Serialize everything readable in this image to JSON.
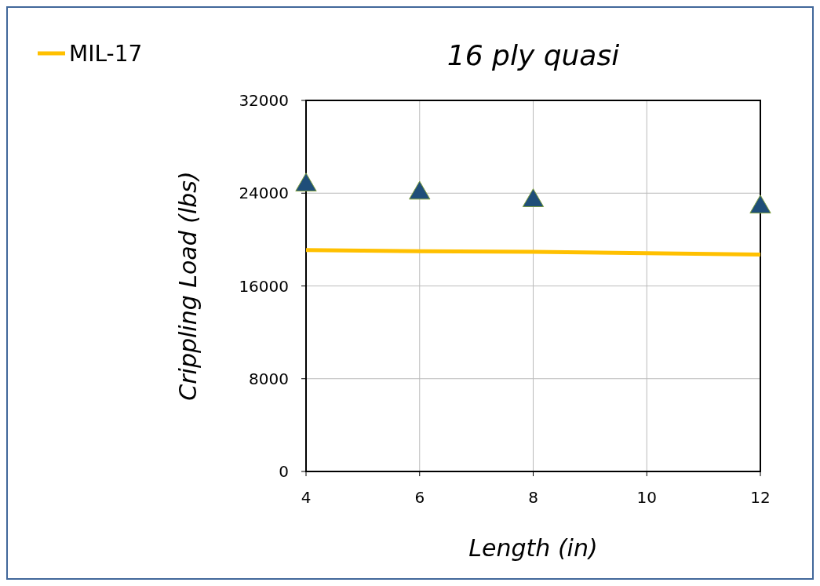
{
  "chart_data": {
    "type": "line",
    "title": "16 ply quasi",
    "xlabel": "Length (in)",
    "ylabel": "Crippling Load (lbs)",
    "xlim": [
      4,
      12
    ],
    "xticks": [
      4,
      6,
      8,
      10,
      12
    ],
    "ylim": [
      0,
      32000
    ],
    "yticks": [
      0,
      8000,
      16000,
      24000,
      32000
    ],
    "grid": true,
    "legend": "top left",
    "series": [
      {
        "name": "MIL-17",
        "color": "#ffc000",
        "marker": "none",
        "x": [
          4,
          6,
          8,
          12
        ],
        "values": [
          19100,
          19000,
          18950,
          18700
        ]
      },
      {
        "type": "scatter",
        "color": "#1f4e79",
        "marker": "triangle",
        "x": [
          4,
          6,
          8,
          12
        ],
        "values": [
          24700,
          24000,
          23350,
          22800
        ]
      }
    ]
  }
}
